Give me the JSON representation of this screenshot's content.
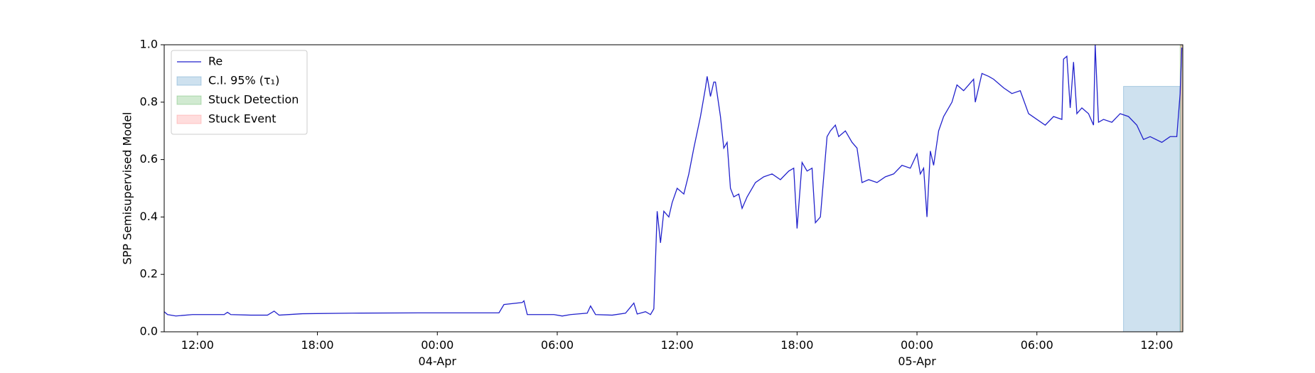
{
  "chart_data": {
    "type": "line",
    "ylabel": "SPP Semisupervised Model",
    "xlim": [
      "1900-04-03 10:20",
      "1900-04-05 13:18"
    ],
    "xticks": [
      {
        "value": "1900-04-03 12:00",
        "label": "12:00"
      },
      {
        "value": "1900-04-03 18:00",
        "label": "18:00"
      },
      {
        "value": "1900-04-04 00:00",
        "label": "00:00\n04-Apr\n1900"
      },
      {
        "value": "1900-04-04 06:00",
        "label": "06:00"
      },
      {
        "value": "1900-04-04 12:00",
        "label": "12:00"
      },
      {
        "value": "1900-04-04 18:00",
        "label": "18:00"
      },
      {
        "value": "1900-04-05 00:00",
        "label": "00:00\n05-Apr"
      },
      {
        "value": "1900-04-05 06:00",
        "label": "06:00"
      },
      {
        "value": "1900-04-05 12:00",
        "label": "12:00"
      }
    ],
    "ylim": [
      0,
      1
    ],
    "yticks": [
      {
        "value": 0,
        "label": "0.0"
      },
      0.2,
      0.4,
      0.6,
      0.8,
      {
        "value": 1,
        "label": "1.0"
      }
    ],
    "grid": false,
    "legend": "upper left",
    "x": [
      "1900-04-03 10:20",
      "1900-04-03 10:30",
      "1900-04-03 10:55",
      "1900-04-03 11:45",
      "1900-04-03 13:20",
      "1900-04-03 13:30",
      "1900-04-03 13:40",
      "1900-04-03 14:40",
      "1900-04-03 15:30",
      "1900-04-03 15:50",
      "1900-04-03 16:05",
      "1900-04-03 17:15",
      "1900-04-03 19:45",
      "1900-04-03 23:05",
      "1900-04-04 03:05",
      "1900-04-04 03:20",
      "1900-04-04 04:15",
      "1900-04-04 04:20",
      "1900-04-04 04:30",
      "1900-04-04 05:00",
      "1900-04-04 05:50",
      "1900-04-04 06:15",
      "1900-04-04 06:40",
      "1900-04-04 07:30",
      "1900-04-04 07:40",
      "1900-04-04 07:55",
      "1900-04-04 08:45",
      "1900-04-04 09:25",
      "1900-04-04 09:50",
      "1900-04-04 10:00",
      "1900-04-04 10:25",
      "1900-04-04 10:40",
      "1900-04-04 10:50",
      "1900-04-04 11:00",
      "1900-04-04 11:10",
      "1900-04-04 11:20",
      "1900-04-04 11:35",
      "1900-04-04 11:45",
      "1900-04-04 12:00",
      "1900-04-04 12:20",
      "1900-04-04 12:35",
      "1900-04-04 12:50",
      "1900-04-04 13:10",
      "1900-04-04 13:25",
      "1900-04-04 13:30",
      "1900-04-04 13:40",
      "1900-04-04 13:50",
      "1900-04-04 13:55",
      "1900-04-04 14:10",
      "1900-04-04 14:20",
      "1900-04-04 14:30",
      "1900-04-04 14:40",
      "1900-04-04 14:50",
      "1900-04-04 15:05",
      "1900-04-04 15:15",
      "1900-04-04 15:30",
      "1900-04-04 15:55",
      "1900-04-04 16:20",
      "1900-04-04 16:45",
      "1900-04-04 17:10",
      "1900-04-04 17:35",
      "1900-04-04 17:50",
      "1900-04-04 18:00",
      "1900-04-04 18:15",
      "1900-04-04 18:30",
      "1900-04-04 18:45",
      "1900-04-04 18:55",
      "1900-04-04 19:10",
      "1900-04-04 19:30",
      "1900-04-04 19:40",
      "1900-04-04 19:55",
      "1900-04-04 20:05",
      "1900-04-04 20:25",
      "1900-04-04 20:45",
      "1900-04-04 21:00",
      "1900-04-04 21:15",
      "1900-04-04 21:35",
      "1900-04-04 22:00",
      "1900-04-04 22:25",
      "1900-04-04 22:50",
      "1900-04-04 23:15",
      "1900-04-04 23:40",
      "1900-04-05 00:00",
      "1900-04-05 00:10",
      "1900-04-05 00:20",
      "1900-04-05 00:30",
      "1900-04-05 00:40",
      "1900-04-05 00:50",
      "1900-04-05 01:05",
      "1900-04-05 01:20",
      "1900-04-05 01:45",
      "1900-04-05 02:00",
      "1900-04-05 02:20",
      "1900-04-05 02:35",
      "1900-04-05 02:50",
      "1900-04-05 02:55",
      "1900-04-05 03:15",
      "1900-04-05 03:35",
      "1900-04-05 03:50",
      "1900-04-05 04:20",
      "1900-04-05 04:45",
      "1900-04-05 05:10",
      "1900-04-05 05:35",
      "1900-04-05 06:00",
      "1900-04-05 06:25",
      "1900-04-05 06:50",
      "1900-04-05 07:15",
      "1900-04-05 07:20",
      "1900-04-05 07:30",
      "1900-04-05 07:40",
      "1900-04-05 07:50",
      "1900-04-05 08:00",
      "1900-04-05 08:15",
      "1900-04-05 08:35",
      "1900-04-05 08:50",
      "1900-04-05 08:55",
      "1900-04-05 09:05",
      "1900-04-05 09:20",
      "1900-04-05 09:45",
      "1900-04-05 10:10",
      "1900-04-05 10:35",
      "1900-04-05 11:00",
      "1900-04-05 11:20",
      "1900-04-05 11:40",
      "1900-04-05 12:15",
      "1900-04-05 12:40",
      "1900-04-05 13:00",
      "1900-04-05 13:10",
      "1900-04-05 13:15"
    ],
    "series": [
      {
        "name": "Re",
        "color": "#2222cc",
        "values": [
          0.07,
          0.06,
          0.055,
          0.06,
          0.06,
          0.068,
          0.06,
          0.058,
          0.058,
          0.072,
          0.058,
          0.063,
          0.065,
          0.066,
          0.066,
          0.095,
          0.102,
          0.108,
          0.06,
          0.06,
          0.06,
          0.055,
          0.06,
          0.065,
          0.09,
          0.06,
          0.058,
          0.065,
          0.1,
          0.062,
          0.07,
          0.06,
          0.08,
          0.42,
          0.31,
          0.42,
          0.4,
          0.45,
          0.5,
          0.48,
          0.55,
          0.64,
          0.75,
          0.85,
          0.89,
          0.82,
          0.87,
          0.87,
          0.75,
          0.64,
          0.66,
          0.5,
          0.47,
          0.48,
          0.43,
          0.47,
          0.52,
          0.54,
          0.55,
          0.53,
          0.56,
          0.57,
          0.36,
          0.59,
          0.56,
          0.57,
          0.38,
          0.4,
          0.68,
          0.7,
          0.72,
          0.68,
          0.7,
          0.66,
          0.64,
          0.52,
          0.53,
          0.52,
          0.54,
          0.55,
          0.58,
          0.57,
          0.62,
          0.55,
          0.57,
          0.4,
          0.63,
          0.58,
          0.7,
          0.75,
          0.8,
          0.86,
          0.84,
          0.86,
          0.88,
          0.8,
          0.9,
          0.89,
          0.88,
          0.85,
          0.83,
          0.84,
          0.76,
          0.74,
          0.72,
          0.75,
          0.74,
          0.95,
          0.96,
          0.78,
          0.94,
          0.76,
          0.78,
          0.76,
          0.72,
          1.0,
          0.73,
          0.74,
          0.73,
          0.76,
          0.75,
          0.72,
          0.67,
          0.68,
          0.66,
          0.68,
          0.68,
          0.83,
          0.99
        ]
      }
    ],
    "spans": [
      {
        "name": "Stuck Detection",
        "color": "#2ca02c",
        "start": "1900-04-05 13:10",
        "end": "1900-04-05 13:18",
        "ymax": 1
      },
      {
        "name": "C.I. 95% (τ₁)",
        "color": "#1f77b4",
        "start": "1900-04-05 10:20",
        "end": "1900-04-05 13:10",
        "ymax": 0.855
      },
      {
        "name": "Stuck Event",
        "color": "#ff6666",
        "start": "1900-04-05 13:12",
        "end": "1900-04-05 13:18",
        "ymax": 1
      }
    ]
  }
}
